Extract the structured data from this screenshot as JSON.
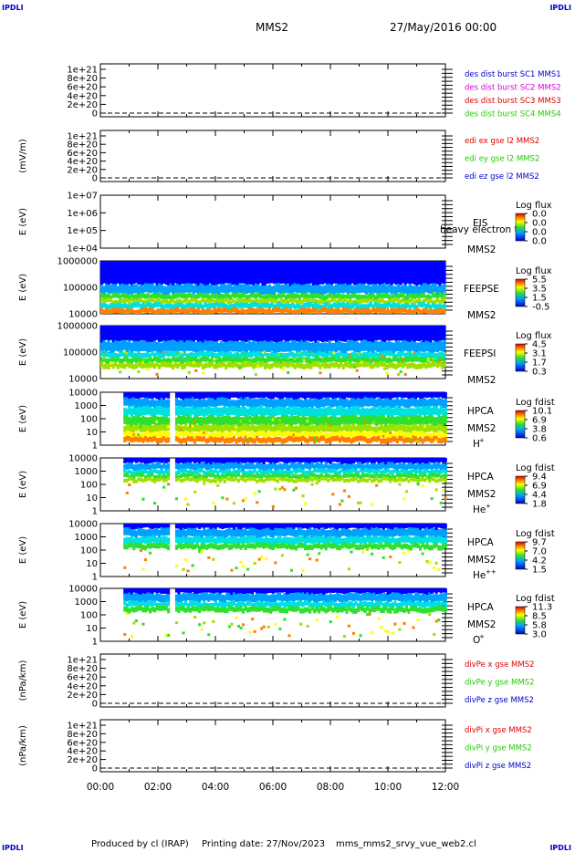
{
  "corners": {
    "tl": "IPDLI",
    "tr": "IPDLI",
    "bl": "IPDLI",
    "br": "IPDLI"
  },
  "header": {
    "spacecraft": "MMS2",
    "datetime": "27/May/2016 00:00"
  },
  "footer": {
    "produced": "Produced by cl (IRAP)",
    "printing": "Printing date: 27/Nov/2023",
    "script": "mms_mms2_srvy_vue_web2.cl"
  },
  "colors": {
    "red": "#dd0000",
    "magenta": "#dd00dd",
    "green": "#22cc00",
    "blue": "#0000cc",
    "orange": "#ff8800",
    "dashed": "#000000"
  },
  "chart_data": [
    {
      "type": "line",
      "id": "des",
      "ylabel": "",
      "yticks": [
        "1e+21",
        "8e+20",
        "6e+20",
        "4e+20",
        "2e+20",
        "0"
      ],
      "legend": [
        {
          "text": "des dist burst SC1 MMS1",
          "color": "#0000cc"
        },
        {
          "text": "des dist burst SC2 MMS2",
          "color": "#dd00dd"
        },
        {
          "text": "des dist burst SC3 MMS3",
          "color": "#dd0000"
        },
        {
          "text": "des dist burst SC4 MMS4",
          "color": "#22cc00"
        }
      ],
      "x": [
        "00:00",
        "02:00",
        "04:00",
        "06:00",
        "08:00",
        "10:00",
        "12:00"
      ],
      "series": []
    },
    {
      "type": "line",
      "id": "edi",
      "ylabel": "(mV/m)",
      "yticks": [
        "1e+21",
        "8e+20",
        "6e+20",
        "4e+20",
        "2e+20",
        "0"
      ],
      "legend": [
        {
          "text": "edi ex gse l2 MMS2",
          "color": "#dd0000"
        },
        {
          "text": "edi ey gse l2 MMS2",
          "color": "#22cc00"
        },
        {
          "text": "edi ez gse l2 MMS2",
          "color": "#0000cc"
        }
      ],
      "x": [
        "00:00",
        "02:00",
        "04:00",
        "06:00",
        "08:00",
        "10:00",
        "12:00"
      ],
      "series": []
    },
    {
      "type": "heatmap",
      "id": "eis",
      "ylabel": "E (eV)",
      "yticks": [
        "1e+07",
        "1e+06",
        "1e+05",
        "1e+04"
      ],
      "right_labels": [
        "EIS",
        "MMS2"
      ],
      "overlay_text": "heavy electron to",
      "cb_title": "Log flux",
      "cb_ticks": [
        "0.0",
        "0.0",
        "0.0",
        "0.0"
      ],
      "coverage": []
    },
    {
      "type": "heatmap",
      "id": "feepse",
      "ylabel": "E (eV)",
      "yticks": [
        "1000000",
        "100000",
        "10000"
      ],
      "right_labels": [
        "FEEPSE",
        "MMS2"
      ],
      "cb_title": "Log flux",
      "cb_ticks": [
        "5.5",
        "3.5",
        "1.5",
        "-0.5"
      ],
      "coverage": [
        [
          0,
          12
        ]
      ]
    },
    {
      "type": "heatmap",
      "id": "feepsi",
      "ylabel": "E (eV)",
      "yticks": [
        "1000000",
        "100000",
        "10000"
      ],
      "right_labels": [
        "FEEPSI",
        "MMS2"
      ],
      "cb_title": "Log flux",
      "cb_ticks": [
        "4.5",
        "3.1",
        "1.7",
        "0.3"
      ],
      "coverage": [
        [
          0,
          12
        ]
      ]
    },
    {
      "type": "heatmap",
      "id": "hpca_h",
      "ylabel": "E (eV)",
      "yticks": [
        "10000",
        "1000",
        "100",
        "10",
        "1"
      ],
      "right_labels": [
        "HPCA",
        "MMS2"
      ],
      "species": "H",
      "charge": "+",
      "cb_title": "Log fdist",
      "cb_ticks": [
        "10.1",
        "6.9",
        "3.8",
        "0.6"
      ],
      "coverage": [
        [
          0.8,
          2.4
        ],
        [
          2.6,
          12
        ]
      ]
    },
    {
      "type": "heatmap",
      "id": "hpca_he",
      "ylabel": "E (eV)",
      "yticks": [
        "10000",
        "1000",
        "100",
        "10",
        "1"
      ],
      "right_labels": [
        "HPCA",
        "MMS2"
      ],
      "species": "He",
      "charge": "+",
      "cb_title": "Log fdist",
      "cb_ticks": [
        "9.4",
        "6.9",
        "4.4",
        "1.8"
      ],
      "coverage": [
        [
          0.8,
          2.4
        ],
        [
          2.6,
          12
        ]
      ]
    },
    {
      "type": "heatmap",
      "id": "hpca_hepp",
      "ylabel": "E (eV)",
      "yticks": [
        "10000",
        "1000",
        "100",
        "10",
        "1"
      ],
      "right_labels": [
        "HPCA",
        "MMS2"
      ],
      "species": "He",
      "charge": "++",
      "cb_title": "Log fdist",
      "cb_ticks": [
        "9.7",
        "7.0",
        "4.2",
        "1.5"
      ],
      "coverage": [
        [
          0.8,
          2.4
        ],
        [
          2.6,
          12
        ]
      ]
    },
    {
      "type": "heatmap",
      "id": "hpca_o",
      "ylabel": "E (eV)",
      "yticks": [
        "10000",
        "1000",
        "100",
        "10",
        "1"
      ],
      "right_labels": [
        "HPCA",
        "MMS2"
      ],
      "species": "O",
      "charge": "+",
      "cb_title": "Log fdist",
      "cb_ticks": [
        "11.3",
        "8.5",
        "5.8",
        "3.0"
      ],
      "coverage": [
        [
          0.8,
          2.4
        ],
        [
          2.6,
          12
        ]
      ]
    },
    {
      "type": "line",
      "id": "divpe",
      "ylabel": "(nPa/km)",
      "yticks": [
        "1e+21",
        "8e+20",
        "6e+20",
        "4e+20",
        "2e+20",
        "0"
      ],
      "legend": [
        {
          "text": "divPe x gse MMS2",
          "color": "#dd0000"
        },
        {
          "text": "divPe y gse MMS2",
          "color": "#22cc00"
        },
        {
          "text": "divPe z gse MMS2",
          "color": "#0000cc"
        }
      ],
      "x": [
        "00:00",
        "02:00",
        "04:00",
        "06:00",
        "08:00",
        "10:00",
        "12:00"
      ],
      "series": []
    },
    {
      "type": "line",
      "id": "divpi",
      "ylabel": "(nPa/km)",
      "yticks": [
        "1e+21",
        "8e+20",
        "6e+20",
        "4e+20",
        "2e+20",
        "0"
      ],
      "legend": [
        {
          "text": "divPi x gse MMS2",
          "color": "#dd0000"
        },
        {
          "text": "divPi y gse MMS2",
          "color": "#22cc00"
        },
        {
          "text": "divPi z gse MMS2",
          "color": "#0000cc"
        }
      ],
      "x": [
        "00:00",
        "02:00",
        "04:00",
        "06:00",
        "08:00",
        "10:00",
        "12:00"
      ],
      "series": []
    }
  ],
  "xaxis": {
    "ticks": [
      "00:00",
      "02:00",
      "04:00",
      "06:00",
      "08:00",
      "10:00",
      "12:00"
    ]
  }
}
